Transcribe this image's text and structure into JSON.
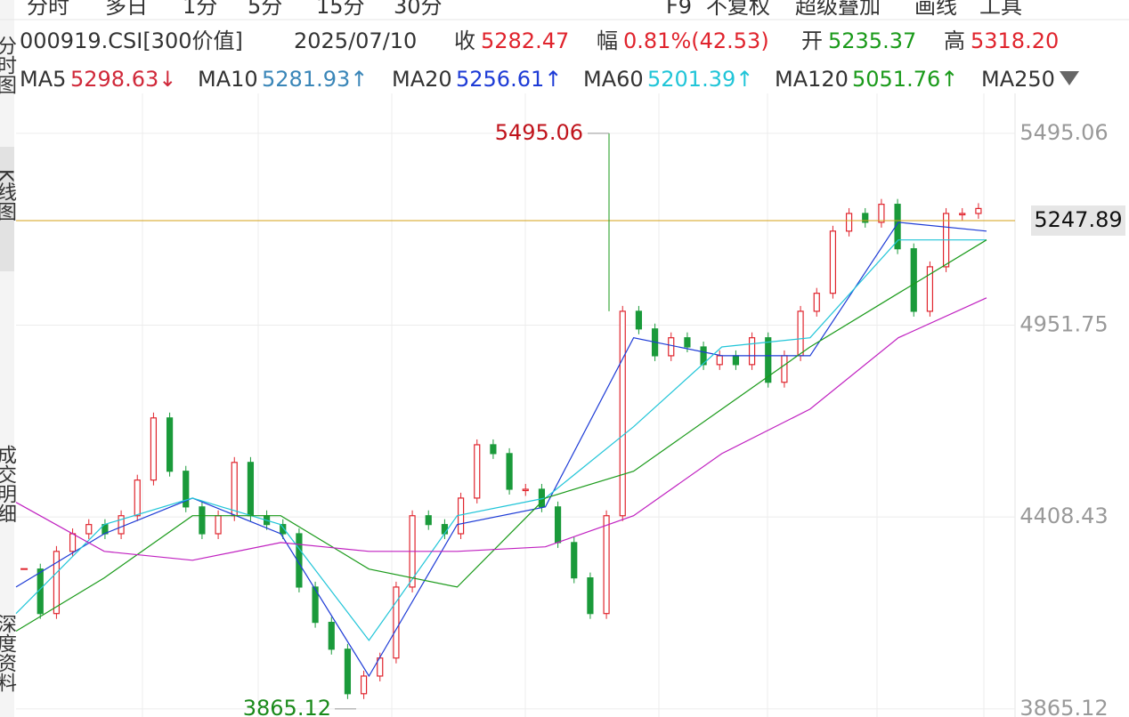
{
  "toolbar": {
    "tabs": [
      "分时",
      "多日",
      "1分",
      "5分",
      "15分",
      "30分"
    ],
    "right": [
      "F9",
      "不复权",
      "超级叠加",
      "画线",
      "工具"
    ]
  },
  "sidebar": [
    "分时图",
    "K线图",
    "成交明细",
    "深度资料"
  ],
  "info": {
    "code": "000919.CSI[300价值]",
    "date": "2025/07/10",
    "close_label": "收",
    "close": "5282.47",
    "change_label": "幅",
    "change": "0.81%(42.53)",
    "open_label": "开",
    "open": "5235.37",
    "high_label": "高",
    "high": "5318.20"
  },
  "chart_data": {
    "type": "candlestick",
    "ylim": [
      3842,
      5608
    ],
    "yticks": [
      5495.06,
      4951.75,
      4408.43,
      3865.12
    ],
    "grid": true,
    "up_color": "#e0242d",
    "down_color": "#1a9a3a",
    "last_price": 5247.89,
    "max_mark": 5495.06,
    "min_mark": 3865.12,
    "closes": [
      4261,
      4135,
      4311,
      4361,
      4387,
      4361,
      4412,
      4513,
      4689,
      4538,
      4437,
      4361,
      4412,
      4563,
      4412,
      4387,
      4361,
      4210,
      4110,
      4034,
      3908,
      3958,
      4009,
      4210,
      4412,
      4387,
      4361,
      4462,
      4613,
      4588,
      4487,
      4487,
      4437,
      4336,
      4236,
      4135,
      4412,
      4991,
      4941,
      4865,
      4916,
      4890,
      4840,
      4865,
      4840,
      4916,
      4790,
      4865,
      4991,
      5042,
      5218,
      5268,
      5243,
      5294,
      5168,
      4991,
      5117,
      5268,
      5268,
      5282
    ],
    "series": [
      {
        "name": "MA5",
        "last_label": "5298.63↓",
        "color": "#d0293a"
      },
      {
        "name": "MA10",
        "last_label": "5281.93↑",
        "color": "#3a86b8"
      },
      {
        "name": "MA20",
        "last_label": "5256.61↑",
        "color": "#1d3bd6",
        "values": [
          4210,
          4361,
          4462,
          4361,
          3958,
          4387,
          4437,
          4916,
          4865,
          4865,
          5243,
          5218
        ]
      },
      {
        "name": "MA60",
        "last_label": "5201.39↑",
        "color": "#21c5d8",
        "values": [
          4135,
          4387,
          4462,
          4387,
          4059,
          4412,
          4462,
          4664,
          4890,
          4916,
          5193,
          5193
        ]
      },
      {
        "name": "MA120",
        "last_label": "5051.76↑",
        "color": "#1a9a1a",
        "values": [
          4085,
          4236,
          4412,
          4412,
          4261,
          4210,
          4462,
          4538,
          4714,
          4890,
          5042,
          5193
        ]
      },
      {
        "name": "MA250",
        "color": "#c020c0",
        "values": [
          4450,
          4311,
          4286,
          4336,
          4311,
          4311,
          4324,
          4412,
          4588,
          4714,
          4916,
          5029
        ]
      }
    ]
  }
}
